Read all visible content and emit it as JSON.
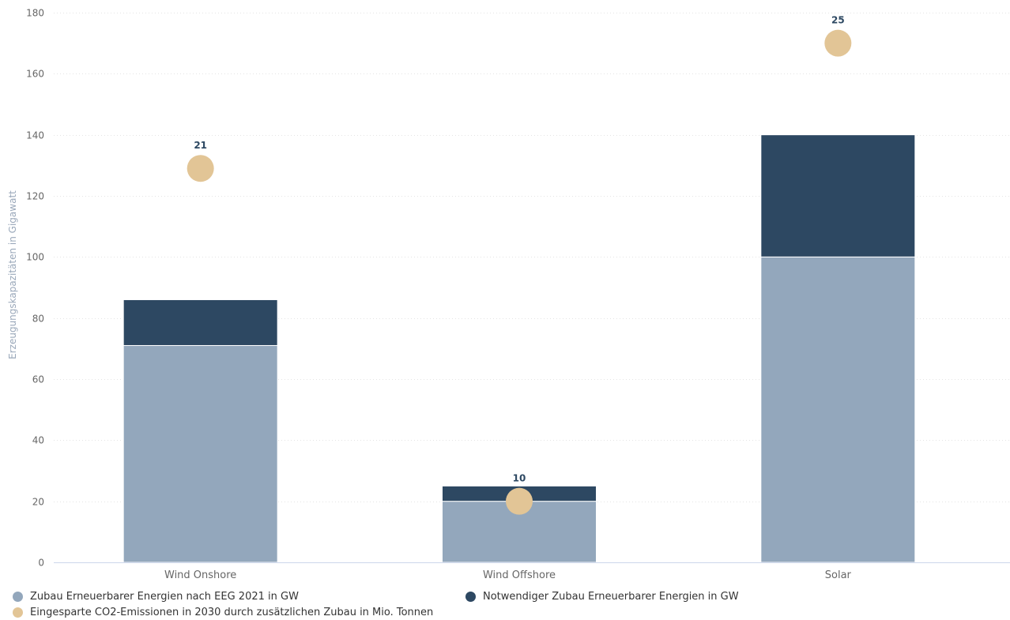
{
  "chart_data": {
    "type": "bar",
    "stacked": true,
    "categories": [
      "Wind Onshore",
      "Wind Offshore",
      "Solar"
    ],
    "ylabel": "Erzeugungskapazitäten in Gigawatt",
    "ylim": [
      0,
      180
    ],
    "yticks": [
      0,
      20,
      40,
      60,
      80,
      100,
      120,
      140,
      160,
      180
    ],
    "grid": true,
    "legend_position": "bottom-left",
    "series": [
      {
        "name": "Zubau Erneuerbarer Energien nach EEG 2021 in GW",
        "type": "bar",
        "color": "#93a7bc",
        "values": [
          71,
          20,
          100
        ]
      },
      {
        "name": "Notwendiger Zubau Erneuerbarer Energien in GW",
        "type": "bar",
        "color": "#2d4862",
        "values": [
          15,
          5,
          40
        ]
      },
      {
        "name": "Eingesparte CO2-Emissionen in 2030 durch zusätzlichen Zubau in Mio. Tonnen",
        "type": "scatter",
        "color": "#e2c596",
        "y": [
          129,
          20,
          170
        ],
        "labels": [
          "21",
          "10",
          "25"
        ]
      }
    ]
  }
}
